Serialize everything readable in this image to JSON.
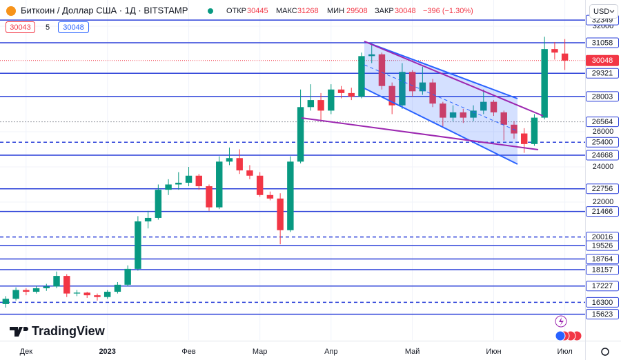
{
  "header": {
    "symbol": "Биткоин / Доллар США · 1Д · BITSTAMP",
    "open_label": "ОТКР",
    "open": 30445,
    "high_label": "МАКС",
    "high": 31268,
    "low_label": "МИН",
    "low": 29508,
    "close_label": "ЗАКР",
    "close": 30048,
    "change": "−396 (−1.30%)",
    "bid": 30043,
    "spread": 5,
    "ask": 30048,
    "currency": "USD"
  },
  "brand": "TradingView",
  "chart_data": {
    "type": "candlestick",
    "categories": [
      null,
      null,
      "Дек",
      null,
      null,
      null,
      null,
      null,
      null,
      null,
      "2023",
      null,
      null,
      null,
      null,
      null,
      null,
      null,
      "Фев",
      null,
      null,
      null,
      null,
      null,
      null,
      "Мар",
      null,
      null,
      null,
      null,
      null,
      null,
      "Апр",
      null,
      null,
      null,
      null,
      null,
      null,
      null,
      "Май",
      null,
      null,
      null,
      null,
      null,
      null,
      null,
      "Июн",
      null,
      null,
      null,
      null,
      null,
      null,
      "Июл"
    ],
    "open": [
      16200,
      16500,
      17000,
      16900,
      17100,
      17200,
      17800,
      16800,
      16850,
      16700,
      16600,
      16900,
      17300,
      18200,
      20900,
      21100,
      22700,
      23000,
      23100,
      23500,
      22900,
      21700,
      24300,
      24500,
      23800,
      23500,
      22400,
      22200,
      20400,
      24300,
      27400,
      27800,
      27200,
      28400,
      28200,
      28000,
      30300,
      30400,
      28600,
      27500,
      29400,
      28300,
      28800,
      27600,
      26800,
      27100,
      26800,
      27200,
      27700,
      27100,
      26400,
      25900,
      25300,
      26800,
      30700,
      30445
    ],
    "high": [
      16650,
      17150,
      17100,
      17250,
      17350,
      18050,
      17900,
      17000,
      16900,
      16800,
      17000,
      17450,
      18400,
      21200,
      21500,
      23000,
      23300,
      23700,
      24000,
      23600,
      23000,
      24600,
      25100,
      25000,
      24100,
      23700,
      22600,
      22500,
      24600,
      28400,
      28700,
      28200,
      28700,
      28600,
      28500,
      30500,
      31000,
      30500,
      28800,
      29900,
      29500,
      29700,
      29000,
      27700,
      27500,
      27300,
      27500,
      28400,
      27800,
      27200,
      26600,
      26200,
      27000,
      31400,
      31100,
      31268
    ],
    "low": [
      16000,
      16400,
      16700,
      16800,
      16950,
      17100,
      16600,
      16650,
      16550,
      16400,
      16500,
      16800,
      17200,
      18100,
      20500,
      21000,
      22400,
      22700,
      22900,
      22700,
      21500,
      21600,
      24100,
      23600,
      23300,
      22300,
      22100,
      19600,
      20300,
      24200,
      27200,
      26600,
      27000,
      27900,
      27800,
      27900,
      29900,
      28400,
      27000,
      27300,
      28000,
      28100,
      27400,
      26300,
      26600,
      26500,
      26600,
      27000,
      26900,
      25500,
      25600,
      24800,
      25200,
      26700,
      30100,
      29508
    ],
    "close": [
      16500,
      17000,
      16900,
      17100,
      17200,
      17800,
      16800,
      16850,
      16700,
      16600,
      16900,
      17300,
      18200,
      20900,
      21100,
      22700,
      23000,
      23100,
      23500,
      22900,
      21700,
      24300,
      24500,
      23800,
      23500,
      22400,
      22200,
      20400,
      24300,
      27400,
      27800,
      27200,
      28400,
      28200,
      28000,
      30300,
      30400,
      28600,
      27500,
      29400,
      28300,
      28800,
      27600,
      26800,
      27100,
      26800,
      27200,
      27700,
      27100,
      26400,
      25900,
      25300,
      26800,
      30700,
      30500,
      30048
    ],
    "up_color": "#089981",
    "down_color": "#f23645",
    "ylim": [
      14196,
      33490
    ],
    "yticks": [
      32000,
      26000,
      24000,
      22000
    ],
    "levels": [
      {
        "value": 32349,
        "style": "solid"
      },
      {
        "value": 31058,
        "style": "solid"
      },
      {
        "value": 29321,
        "style": "solid"
      },
      {
        "value": 28003,
        "style": "solid"
      },
      {
        "value": 26564,
        "style": "dotted"
      },
      {
        "value": 25400,
        "style": "dashed"
      },
      {
        "value": 24668,
        "style": "solid"
      },
      {
        "value": 22756,
        "style": "solid"
      },
      {
        "value": 21466,
        "style": "solid"
      },
      {
        "value": 20016,
        "style": "dashed"
      },
      {
        "value": 19526,
        "style": "solid"
      },
      {
        "value": 18764,
        "style": "solid"
      },
      {
        "value": 18157,
        "style": "solid"
      },
      {
        "value": 17227,
        "style": "solid"
      },
      {
        "value": 16300,
        "style": "dashed"
      },
      {
        "value": 15623,
        "style": "solid"
      }
    ],
    "level_color": "#2a3fd8",
    "last_price": 30048,
    "last_price_color": "#f23645"
  }
}
